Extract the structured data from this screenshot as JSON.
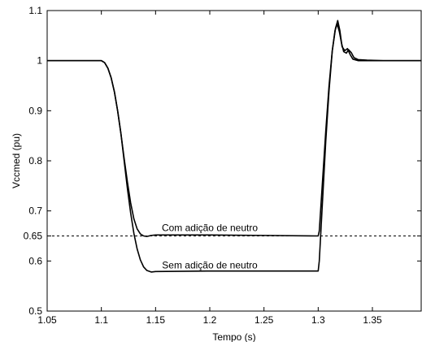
{
  "chart_data": {
    "type": "line",
    "title": "",
    "xlabel": "Tempo (s)",
    "ylabel": "Vccmed (pu)",
    "xlim": [
      1.05,
      1.395
    ],
    "ylim": [
      0.5,
      1.1
    ],
    "xticks": [
      1.05,
      1.1,
      1.15,
      1.2,
      1.25,
      1.3,
      1.35
    ],
    "xtick_labels": [
      "1.05",
      "1.1",
      "1.15",
      "1.2",
      "1.25",
      "1.3",
      "1.35"
    ],
    "yticks": [
      0.5,
      0.6,
      0.65,
      0.7,
      0.8,
      0.9,
      1.0,
      1.1
    ],
    "ytick_labels": [
      "0.5",
      "0.6",
      "0.65",
      "0.7",
      "0.8",
      "0.9",
      "1",
      "1.1"
    ],
    "grid": false,
    "reference_line": {
      "y": 0.65,
      "style": "dashed"
    },
    "annotations": [
      {
        "text": "Com adição de neutro",
        "x": 1.2,
        "y": 0.66
      },
      {
        "text": "Sem adição de neutro",
        "x": 1.2,
        "y": 0.585
      }
    ],
    "series": [
      {
        "points": [
          [
            1.05,
            1.0
          ],
          [
            1.1,
            1.0
          ],
          [
            1.103,
            0.996
          ],
          [
            1.106,
            0.985
          ],
          [
            1.109,
            0.966
          ],
          [
            1.112,
            0.938
          ],
          [
            1.115,
            0.9
          ],
          [
            1.118,
            0.855
          ],
          [
            1.121,
            0.805
          ],
          [
            1.124,
            0.758
          ],
          [
            1.127,
            0.716
          ],
          [
            1.13,
            0.684
          ],
          [
            1.133,
            0.664
          ],
          [
            1.136,
            0.654
          ],
          [
            1.139,
            0.65
          ],
          [
            1.142,
            0.649
          ],
          [
            1.146,
            0.651
          ],
          [
            1.15,
            0.652
          ],
          [
            1.2,
            0.652
          ],
          [
            1.25,
            0.651
          ],
          [
            1.3,
            0.65
          ],
          [
            1.301,
            0.66
          ],
          [
            1.304,
            0.76
          ],
          [
            1.307,
            0.86
          ],
          [
            1.31,
            0.95
          ],
          [
            1.313,
            1.02
          ],
          [
            1.3155,
            1.06
          ],
          [
            1.3175,
            1.073
          ],
          [
            1.3195,
            1.058
          ],
          [
            1.3215,
            1.035
          ],
          [
            1.3235,
            1.018
          ],
          [
            1.326,
            1.015
          ],
          [
            1.328,
            1.022
          ],
          [
            1.3305,
            1.016
          ],
          [
            1.333,
            1.006
          ],
          [
            1.337,
            1.002
          ],
          [
            1.345,
            1.001
          ],
          [
            1.36,
            1.0
          ],
          [
            1.395,
            1.0
          ]
        ]
      },
      {
        "points": [
          [
            1.05,
            1.0
          ],
          [
            1.1,
            1.0
          ],
          [
            1.103,
            0.996
          ],
          [
            1.106,
            0.985
          ],
          [
            1.109,
            0.966
          ],
          [
            1.112,
            0.938
          ],
          [
            1.115,
            0.9
          ],
          [
            1.118,
            0.855
          ],
          [
            1.121,
            0.8
          ],
          [
            1.124,
            0.745
          ],
          [
            1.127,
            0.696
          ],
          [
            1.13,
            0.655
          ],
          [
            1.133,
            0.624
          ],
          [
            1.136,
            0.602
          ],
          [
            1.139,
            0.588
          ],
          [
            1.142,
            0.581
          ],
          [
            1.146,
            0.578
          ],
          [
            1.15,
            0.579
          ],
          [
            1.2,
            0.58
          ],
          [
            1.25,
            0.58
          ],
          [
            1.3,
            0.58
          ],
          [
            1.301,
            0.6
          ],
          [
            1.304,
            0.72
          ],
          [
            1.307,
            0.84
          ],
          [
            1.31,
            0.94
          ],
          [
            1.313,
            1.02
          ],
          [
            1.316,
            1.065
          ],
          [
            1.318,
            1.08
          ],
          [
            1.32,
            1.06
          ],
          [
            1.322,
            1.028
          ],
          [
            1.3245,
            1.02
          ],
          [
            1.327,
            1.024
          ],
          [
            1.3295,
            1.012
          ],
          [
            1.332,
            1.003
          ],
          [
            1.337,
            1.0
          ],
          [
            1.36,
            1.0
          ],
          [
            1.395,
            1.0
          ]
        ]
      }
    ]
  }
}
